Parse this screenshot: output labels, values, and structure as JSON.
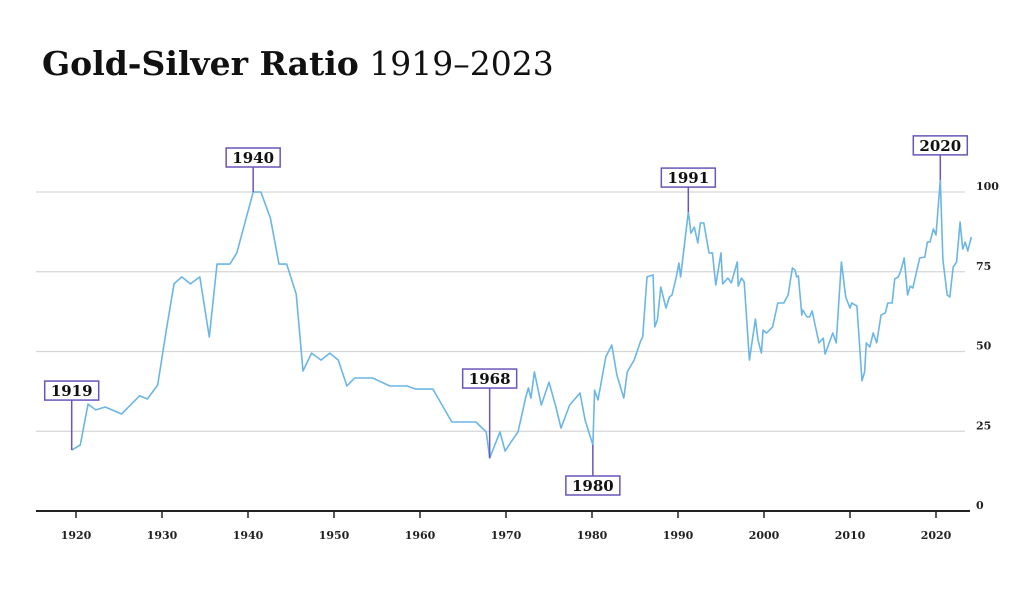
{
  "chart_data": {
    "type": "line",
    "title": "Gold-Silver Ratio",
    "subtitle": "1919–2023",
    "xlabel": "",
    "ylabel": "",
    "xlim": [
      1915,
      2024.5
    ],
    "ylim": [
      0,
      100
    ],
    "x_ticks": [
      1920,
      1930,
      1940,
      1950,
      1960,
      1970,
      1980,
      1990,
      2000,
      2010,
      2020
    ],
    "y_ticks": [
      0,
      25,
      50,
      75,
      100
    ],
    "grid": "horizontal",
    "y_axis_side": "right",
    "colors": {
      "line": "#6cb6e6",
      "annotation": "#6a55b8",
      "grid": "#d6d6d6",
      "axis": "#222222"
    },
    "annotations": [
      {
        "label": "1919",
        "x": 1919.5,
        "y": 19.1,
        "position": "above"
      },
      {
        "label": "1940",
        "x": 1940.6,
        "y": 100,
        "position": "above"
      },
      {
        "label": "1968",
        "x": 1968.1,
        "y": 16.6,
        "position": "above"
      },
      {
        "label": "1980",
        "x": 1980.1,
        "y": 20.7,
        "position": "below"
      },
      {
        "label": "1991",
        "x": 1991.2,
        "y": 93.7,
        "position": "above"
      },
      {
        "label": "2020",
        "x": 2020.5,
        "y": 103.8,
        "position": "above"
      }
    ],
    "series": [
      {
        "x": [
          1919.5,
          1920.5,
          1921.4,
          1922.3,
          1923.4,
          1925.3,
          1927.4,
          1928.3,
          1929.5,
          1930.5,
          1931.4,
          1932.3,
          1933.3,
          1934.4,
          1935.5,
          1936.4,
          1937.9,
          1938.7,
          1940.6,
          1941.5,
          1942.6,
          1943.6,
          1944.5,
          1945.6,
          1946.4,
          1947.4,
          1948.5,
          1949.5,
          1950.5,
          1951.5,
          1952.4,
          1954.5,
          1956.5,
          1958.5,
          1959.5,
          1961.5,
          1963.7,
          1966.5,
          1967.7,
          1968.1,
          1969.3,
          1969.9,
          1970.5,
          1971.4,
          1972.3,
          1972.6,
          1972.9,
          1973.3,
          1974.1,
          1975.0,
          1975.8,
          1976.4,
          1977.4,
          1978.6,
          1979.2,
          1980.1,
          1980.3,
          1980.7,
          1981.6,
          1982.3,
          1982.9,
          1983.7,
          1984.1,
          1984.9,
          1985.7,
          1985.9,
          1986.4,
          1987.1,
          1987.3,
          1987.6,
          1988.0,
          1988.6,
          1989.0,
          1989.3,
          1989.8,
          1990.1,
          1990.3,
          1991.2,
          1991.3,
          1991.5,
          1991.9,
          1992.3,
          1992.6,
          1993.0,
          1993.6,
          1994.0,
          1994.4,
          1995.0,
          1995.2,
          1995.8,
          1996.2,
          1996.9,
          1997.0,
          1997.4,
          1997.7,
          1998.3,
          1999.0,
          1999.3,
          1999.7,
          1999.9,
          2000.3,
          2001.0,
          2001.6,
          2002.3,
          2002.8,
          2003.3,
          2003.6,
          2003.8,
          2004.0,
          2004.4,
          2004.5,
          2005.0,
          2005.3,
          2005.6,
          2005.9,
          2006.4,
          2006.9,
          2007.1,
          2008.0,
          2008.4,
          2009.0,
          2009.5,
          2010.0,
          2010.2,
          2010.8,
          2011.4,
          2011.7,
          2011.9,
          2012.3,
          2012.7,
          2013.1,
          2013.6,
          2014.1,
          2014.4,
          2014.9,
          2015.2,
          2015.6,
          2015.9,
          2016.3,
          2016.7,
          2017.0,
          2017.3,
          2018.1,
          2018.7,
          2019.0,
          2019.3,
          2019.7,
          2020.0,
          2020.5,
          2020.8,
          2021.3,
          2021.6,
          2022.0,
          2022.4,
          2022.8,
          2023.1,
          2023.4,
          2023.7,
          2024.1
        ],
        "values": [
          19.1,
          20.7,
          33.5,
          31.7,
          32.6,
          30.4,
          36.1,
          35.1,
          39.5,
          56.7,
          71.2,
          73.4,
          71.2,
          73.4,
          54.5,
          77.4,
          77.4,
          80.9,
          100,
          100,
          91.8,
          77.4,
          77.4,
          68,
          43.9,
          49.5,
          47.3,
          49.5,
          47.3,
          39.2,
          41.7,
          41.7,
          39.2,
          39.2,
          38.2,
          38.2,
          27.9,
          27.9,
          24.8,
          16.6,
          24.8,
          18.8,
          21.3,
          24.8,
          35.7,
          38.6,
          35.4,
          43.6,
          33.2,
          40.4,
          32.6,
          26,
          33.2,
          37,
          28.5,
          20.7,
          37.9,
          34.8,
          48.3,
          52,
          42.6,
          35.4,
          43.6,
          47.3,
          53.6,
          54.5,
          73.4,
          74,
          57.7,
          59.9,
          70.2,
          63.6,
          67.1,
          67.7,
          73.4,
          77.7,
          73.4,
          93.7,
          91.8,
          87.1,
          89,
          84,
          90.3,
          90.3,
          80.9,
          80.9,
          70.8,
          80.9,
          71.2,
          73,
          71.5,
          78.1,
          70.5,
          73,
          71.8,
          47.3,
          60.2,
          53.6,
          49.5,
          56.7,
          55.8,
          57.7,
          65.2,
          65.2,
          67.7,
          76.2,
          75.5,
          73.4,
          73.7,
          61.4,
          63,
          60.8,
          60.8,
          62.7,
          58.9,
          52.7,
          54.2,
          49.2,
          55.8,
          52.7,
          78.1,
          67.1,
          63.6,
          65.2,
          64.3,
          40.8,
          43.6,
          52.7,
          51.4,
          55.8,
          52.7,
          61.4,
          62.1,
          65.2,
          65.2,
          72.7,
          73.4,
          75.2,
          79.3,
          67.7,
          70.5,
          69.9,
          79.3,
          79.6,
          84.3,
          84.3,
          88.4,
          86.5,
          103.8,
          78.7,
          67.7,
          67.1,
          76.5,
          78.1,
          90.6,
          82.1,
          84.3,
          81.5,
          85.9
        ]
      }
    ]
  }
}
